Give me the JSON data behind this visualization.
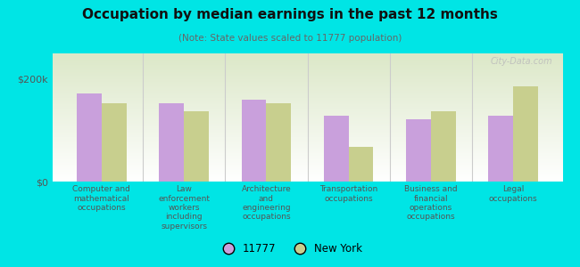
{
  "title": "Occupation by median earnings in the past 12 months",
  "subtitle": "(Note: State values scaled to 11777 population)",
  "categories": [
    "Computer and\nmathematical\noccupations",
    "Law\nenforcement\nworkers\nincluding\nsupervisors",
    "Architecture\nand\nengineering\noccupations",
    "Transportation\noccupations",
    "Business and\nfinancial\noperations\noccupations",
    "Legal\noccupations"
  ],
  "values_11777": [
    172000,
    152000,
    160000,
    128000,
    122000,
    128000
  ],
  "values_ny": [
    152000,
    138000,
    152000,
    68000,
    138000,
    185000
  ],
  "color_11777": "#c9a0dc",
  "color_ny": "#c8cf8e",
  "bar_width": 0.3,
  "ylim": [
    0,
    250000
  ],
  "yticks": [
    0,
    200000
  ],
  "ytick_labels": [
    "$0",
    "$200k"
  ],
  "legend_labels": [
    "11777",
    "New York"
  ],
  "bg_color_top": "#ffffff",
  "bg_color_bot": "#e8f0d0",
  "outer_bg": "#00e5e5",
  "watermark": "City-Data.com",
  "sep_color": "#cccccc",
  "axis_line_color": "#aaaaaa"
}
